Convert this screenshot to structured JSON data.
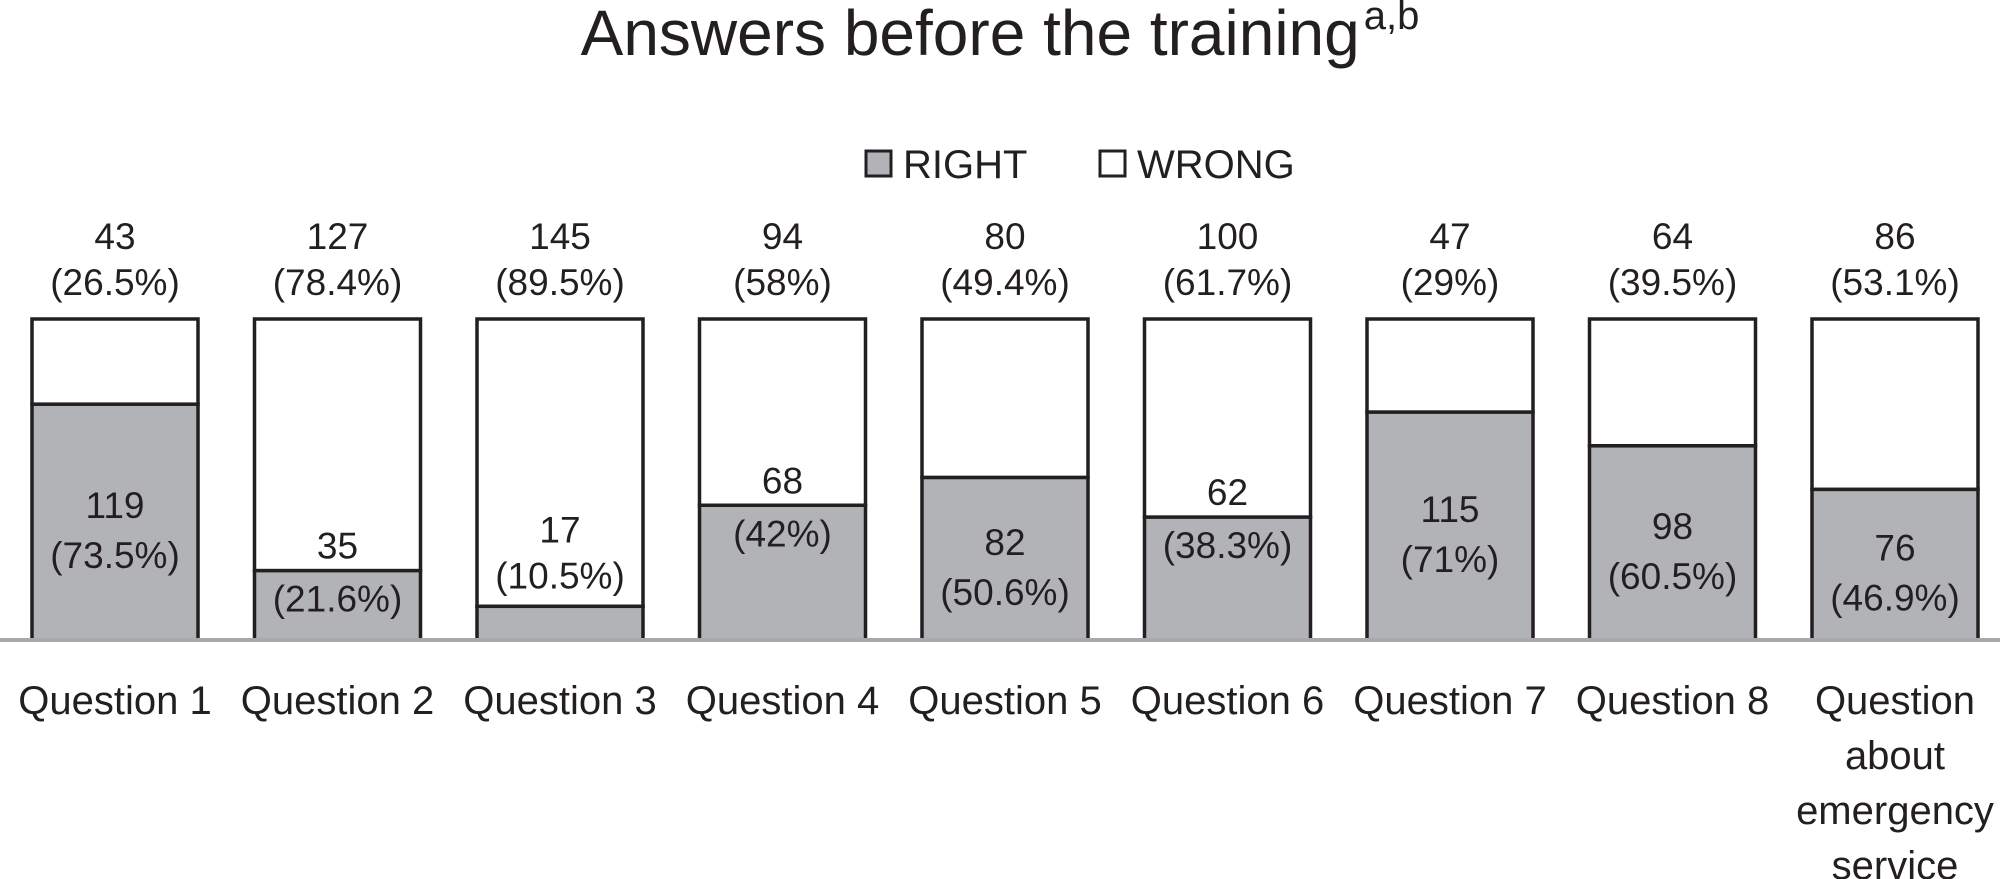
{
  "chart_data": {
    "type": "bar",
    "stacked": true,
    "title": "Answers before the training",
    "title_superscript": "a,b",
    "legend_placement": "top-center",
    "grid": false,
    "ylim": [
      0,
      162
    ],
    "categories": [
      "Question 1",
      "Question 2",
      "Question 3",
      "Question 4",
      "Question 5",
      "Question 6",
      "Question 7",
      "Question 8",
      "Question about emergency service"
    ],
    "series": [
      {
        "name": "RIGHT",
        "color": "#b2b3b6",
        "values": [
          119,
          35,
          17,
          68,
          82,
          62,
          115,
          98,
          76
        ],
        "percent_labels": [
          "(73.5%)",
          "(21.6%)",
          "(10.5%)",
          "(42%)",
          "(50.6%)",
          "(38.3%)",
          "(71%)",
          "(60.5%)",
          "(46.9%)"
        ]
      },
      {
        "name": "WRONG",
        "color": "#ffffff",
        "values": [
          43,
          127,
          145,
          94,
          80,
          100,
          47,
          64,
          86
        ],
        "percent_labels": [
          "(26.5%)",
          "(78.4%)",
          "(89.5%)",
          "(58%)",
          "(49.4%)",
          "(61.7%)",
          "(29%)",
          "(39.5%)",
          "(53.1%)"
        ]
      }
    ]
  },
  "colors": {
    "text": "#231f20",
    "bar_outline": "#231f20",
    "baseline": "#a7a9ac",
    "right_fill": "#b2b3b6",
    "wrong_fill": "#ffffff"
  }
}
